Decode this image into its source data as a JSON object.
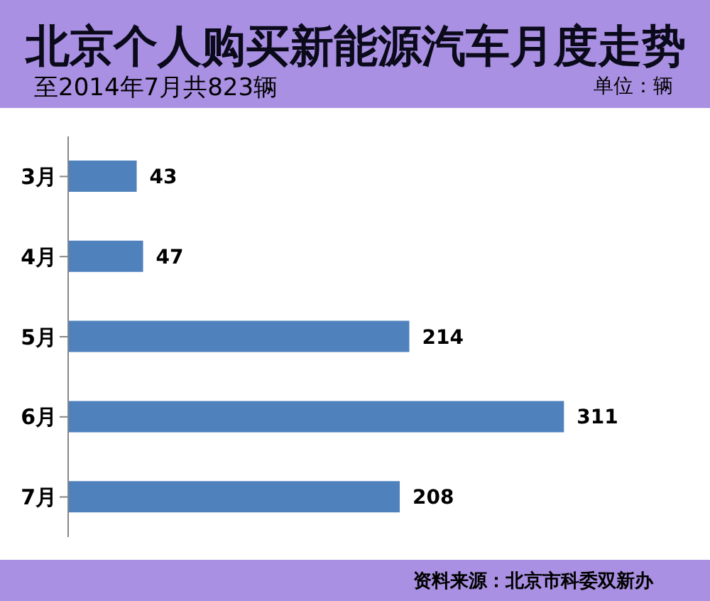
{
  "chart_data": {
    "type": "bar",
    "orientation": "horizontal",
    "title": "北京个人购买新能源汽车月度走势",
    "subtitle": "至2014年7月共823辆",
    "annotations": [
      "单位：辆",
      "资料来源：北京市科委双新办"
    ],
    "categories": [
      "3月",
      "4月",
      "5月",
      "6月",
      "7月"
    ],
    "values": [
      43,
      47,
      214,
      311,
      208
    ],
    "color": "#4f81bd",
    "data_labels": true,
    "grid": false,
    "legend": false
  }
}
